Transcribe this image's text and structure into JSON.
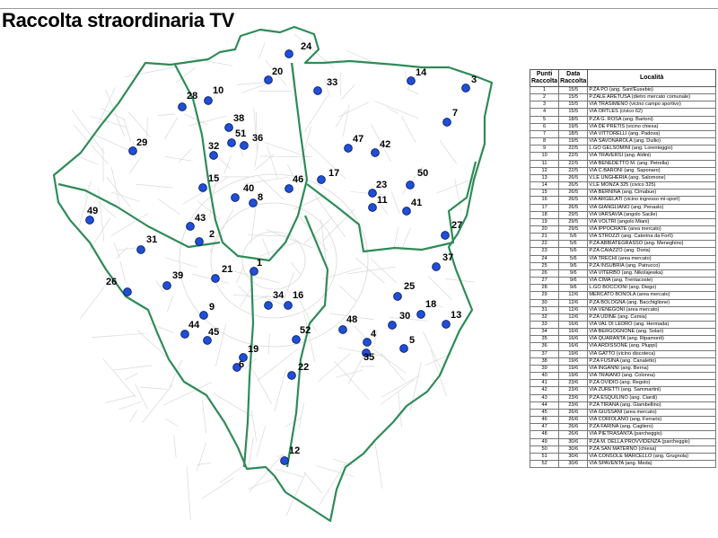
{
  "title": "Raccolta straordinaria TV",
  "colors": {
    "boundary": "#2e8b57",
    "point_fill": "#1f4fd6",
    "point_stroke": "#0a1e66",
    "streets": "#d9d9d9"
  },
  "legend": {
    "headers": {
      "punti": "Punti Raccolta",
      "data": "Data Raccolta",
      "localita": "Località"
    },
    "rows": [
      {
        "n": "1",
        "date": "15/5",
        "place": "P.ZA PO (ang. Sant'Eusebio)"
      },
      {
        "n": "2",
        "date": "15/5",
        "place": "P.ZALE ARETUSA (dietro mercato comunale)"
      },
      {
        "n": "3",
        "date": "15/5",
        "place": "VIA TRASIMENO (vicino campo sportivo)"
      },
      {
        "n": "4",
        "date": "15/5",
        "place": "VIA ORTLES (civico 62)"
      },
      {
        "n": "5",
        "date": "18/5",
        "place": "P.ZA G. ROSA (ang. Bartoni)"
      },
      {
        "n": "6",
        "date": "19/5",
        "place": "VIA DE PRETIS (vicino chiesa)"
      },
      {
        "n": "7",
        "date": "18/5",
        "place": "VIA VITTORELLI (ang. Padova)"
      },
      {
        "n": "8",
        "date": "19/5",
        "place": "VIA SAVONAROLA (ang. Duilio)"
      },
      {
        "n": "9",
        "date": "22/5",
        "place": "L.GO GELSOMINI (ang. Lorenteggio)"
      },
      {
        "n": "10",
        "date": "22/5",
        "place": "VIA TRAVERSI (ang. Aldini)"
      },
      {
        "n": "11",
        "date": "22/5",
        "place": "VIA BENEDETTO M. (ang. Petrella)"
      },
      {
        "n": "12",
        "date": "22/5",
        "place": "VIA C.BARONI (ang. Saponaro)"
      },
      {
        "n": "13",
        "date": "26/5",
        "place": "V.LE UNGHERIA (ang. Salomone)"
      },
      {
        "n": "14",
        "date": "26/5",
        "place": "V.LE MONZA 325 (civico 325)"
      },
      {
        "n": "15",
        "date": "26/5",
        "place": "VIA BERNINA (ang. Cimabue)"
      },
      {
        "n": "16",
        "date": "26/5",
        "place": "VIA ARGELATI (vicino ingresso mi-sport)"
      },
      {
        "n": "17",
        "date": "26/5",
        "place": "VIA GIANGLIANO (ang. Penaslo)"
      },
      {
        "n": "18",
        "date": "29/5",
        "place": "VIA VARSAVIA (angolo Sacile)"
      },
      {
        "n": "19",
        "date": "29/5",
        "place": "VIA VOLTRI (angolo Miani)"
      },
      {
        "n": "20",
        "date": "29/5",
        "place": "VIA IPPOCRATE (area mercato)"
      },
      {
        "n": "21",
        "date": "5/6",
        "place": "VIA STROZZI (ang. Caterina da Forlì)"
      },
      {
        "n": "22",
        "date": "5/6",
        "place": "P.ZA ABBIATEGRASSO (ang. Meneghino)"
      },
      {
        "n": "23",
        "date": "5/6",
        "place": "P.ZA CAIAZZO (ang. Doria)"
      },
      {
        "n": "24",
        "date": "5/6",
        "place": "VIA TRECHI (area mercato)"
      },
      {
        "n": "25",
        "date": "9/6",
        "place": "P.ZA INSUBRIA (ang. Patrucco)"
      },
      {
        "n": "26",
        "date": "9/6",
        "place": "VIA VITERBO (ang. Nikolajewka)"
      },
      {
        "n": "27",
        "date": "9/6",
        "place": "VIA CIMA (ang. Trentacoste)"
      },
      {
        "n": "28",
        "date": "9/6",
        "place": "L.GO BOCCIONI (ang. Diego)"
      },
      {
        "n": "29",
        "date": "12/6",
        "place": "MERCATO BONOLA (area mercato)"
      },
      {
        "n": "30",
        "date": "12/6",
        "place": "P.ZA BOLOGNA (ang. Bacchiglione)"
      },
      {
        "n": "31",
        "date": "12/6",
        "place": "VIA VENEGONI (area mercato)"
      },
      {
        "n": "32",
        "date": "12/6",
        "place": "P.ZA UDINE (ang. Cemia)"
      },
      {
        "n": "33",
        "date": "16/6",
        "place": "VIA VAL DI LEDRO (ang. Hermada)"
      },
      {
        "n": "34",
        "date": "16/6",
        "place": "VIA BERGOGNONE (ang. Solari)"
      },
      {
        "n": "35",
        "date": "16/6",
        "place": "VIA QUARANTA (ang. Ripamonti)"
      },
      {
        "n": "36",
        "date": "16/6",
        "place": "VIA ARDISSONE (ang. Pluppi)"
      },
      {
        "n": "37",
        "date": "19/6",
        "place": "VIA GATTO (vicino discoteca)"
      },
      {
        "n": "38",
        "date": "19/6",
        "place": "P.ZA FUSINA (ang. Canaletto)"
      },
      {
        "n": "39",
        "date": "19/6",
        "place": "VIA INGANNI (ang. Berna)"
      },
      {
        "n": "40",
        "date": "19/6",
        "place": "VIA TRAIANO (ang. Colonna)"
      },
      {
        "n": "41",
        "date": "23/6",
        "place": "P.ZA OVIDIO (ang. Regolo)"
      },
      {
        "n": "42",
        "date": "23/6",
        "place": "VIA ZURETTI (ang. Sammartini)"
      },
      {
        "n": "43",
        "date": "23/6",
        "place": "P.ZA ESQUILINO (ang. Ciardi)"
      },
      {
        "n": "44",
        "date": "23/6",
        "place": "P.ZA TIRANA (ang. Giambellino)"
      },
      {
        "n": "45",
        "date": "26/6",
        "place": "VIA GIUSSANI (area mercato)"
      },
      {
        "n": "46",
        "date": "26/6",
        "place": "VIA CORIOLANO (ang. Ferraris)"
      },
      {
        "n": "47",
        "date": "26/6",
        "place": "P.ZA FARINA (ang. Cagliero)"
      },
      {
        "n": "48",
        "date": "26/6",
        "place": "VIA PIETRASANTA (parcheggio)"
      },
      {
        "n": "49",
        "date": "30/6",
        "place": "P.ZA M. DELLA PROVVIDENZA (parcheggio)"
      },
      {
        "n": "50",
        "date": "30/6",
        "place": "P.ZA SAN MATERNO (chiesa)"
      },
      {
        "n": "51",
        "date": "30/6",
        "place": "VIA CONSOLE MARCELLO (ang. Grugnola)"
      },
      {
        "n": "52",
        "date": "30/6",
        "place": "VIA SPAVENTA (ang. Meda)"
      }
    ]
  },
  "points": [
    {
      "label": "1"
    },
    {
      "label": "2"
    },
    {
      "label": "3"
    },
    {
      "label": "4"
    },
    {
      "label": "5"
    },
    {
      "label": "6"
    },
    {
      "label": "7"
    },
    {
      "label": "8"
    },
    {
      "label": "9"
    },
    {
      "label": "10"
    },
    {
      "label": "11"
    },
    {
      "label": "12"
    },
    {
      "label": "13"
    },
    {
      "label": "14"
    },
    {
      "label": "15"
    },
    {
      "label": "16"
    },
    {
      "label": "17"
    },
    {
      "label": "18"
    },
    {
      "label": "19"
    },
    {
      "label": "20"
    },
    {
      "label": "21"
    },
    {
      "label": "22"
    },
    {
      "label": "23"
    },
    {
      "label": "24"
    },
    {
      "label": "25"
    },
    {
      "label": "26"
    },
    {
      "label": "27"
    },
    {
      "label": "28"
    },
    {
      "label": "29"
    },
    {
      "label": "30"
    },
    {
      "label": "31"
    },
    {
      "label": "32"
    },
    {
      "label": "33"
    },
    {
      "label": "34"
    },
    {
      "label": "35"
    },
    {
      "label": "36"
    },
    {
      "label": "37"
    },
    {
      "label": "38"
    },
    {
      "label": "39"
    },
    {
      "label": "40"
    },
    {
      "label": "41"
    },
    {
      "label": "42"
    },
    {
      "label": "43"
    },
    {
      "label": "44"
    },
    {
      "label": "45"
    },
    {
      "label": "46"
    },
    {
      "label": "47"
    },
    {
      "label": "48"
    },
    {
      "label": "49"
    },
    {
      "label": "50"
    },
    {
      "label": "51"
    },
    {
      "label": "52"
    }
  ]
}
